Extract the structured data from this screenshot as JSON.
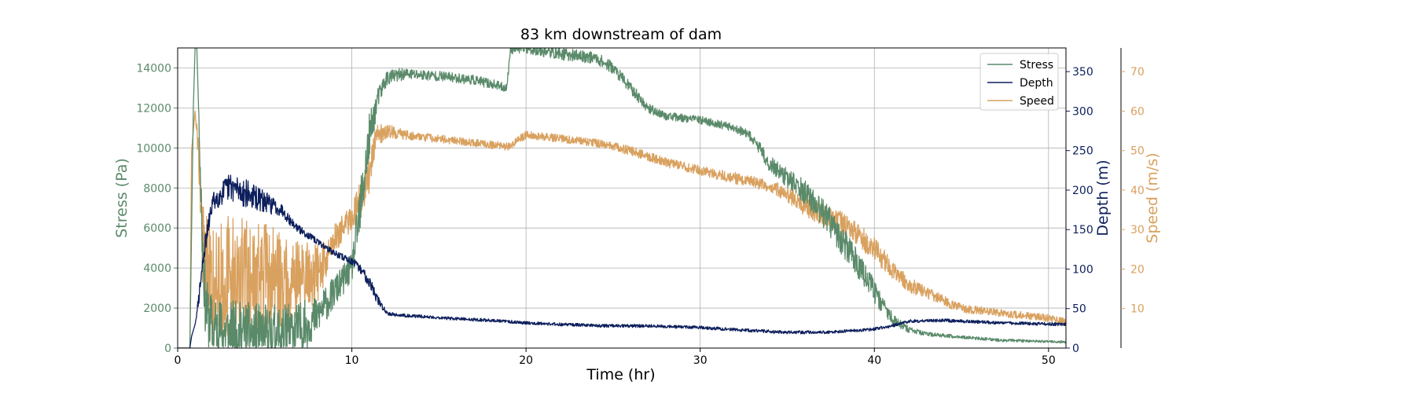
{
  "chart_data": {
    "type": "line",
    "title": "83 km downstream of dam",
    "xlabel": "Time (hr)",
    "xlim": [
      0,
      51
    ],
    "xticks": [
      0,
      10,
      20,
      30,
      40,
      50
    ],
    "grid": true,
    "legend_placement": "top-right",
    "axes": {
      "stress": {
        "label": "Stress (Pa)",
        "ylim": [
          0,
          15000
        ],
        "ticks": [
          0,
          2000,
          4000,
          6000,
          8000,
          10000,
          12000,
          14000
        ],
        "color": "#5a8a6a",
        "side": "left"
      },
      "depth": {
        "label": "Depth (m)",
        "ylim": [
          0,
          380
        ],
        "ticks": [
          0,
          50,
          100,
          150,
          200,
          250,
          300,
          350
        ],
        "color": "#0d1f5c",
        "side": "right"
      },
      "speed": {
        "label": "Speed (m/s)",
        "ylim": [
          0,
          76
        ],
        "ticks": [
          10,
          20,
          30,
          40,
          50,
          60,
          70
        ],
        "color": "#d9a15f",
        "side": "right-outer"
      }
    },
    "series": [
      {
        "name": "Stress",
        "axis": "stress",
        "color": "#5a8a6a",
        "x": [
          0,
          0.7,
          0.9,
          1.0,
          1.1,
          1.2,
          1.4,
          1.6,
          2,
          3,
          4,
          5,
          6,
          7,
          8,
          9,
          10,
          10.5,
          11,
          11.5,
          12,
          13,
          15,
          17,
          18,
          18.9,
          19.1,
          20,
          22,
          24,
          25,
          26,
          27,
          28,
          30,
          32,
          33,
          34,
          35,
          36,
          37,
          38,
          39,
          40,
          41,
          42,
          43,
          45,
          47,
          49,
          51
        ],
        "y": [
          0,
          0,
          12000,
          15000,
          15000,
          12000,
          6000,
          2000,
          1000,
          800,
          700,
          600,
          700,
          900,
          1600,
          2800,
          4000,
          7000,
          10500,
          12500,
          13500,
          13700,
          13600,
          13400,
          13200,
          13000,
          15000,
          15000,
          14700,
          14500,
          14000,
          13000,
          12000,
          11600,
          11400,
          11000,
          10500,
          9200,
          8500,
          7800,
          6800,
          5600,
          4300,
          2800,
          1500,
          900,
          700,
          550,
          400,
          350,
          300
        ],
        "noise": [
          0,
          0,
          0,
          0,
          0,
          0,
          2000,
          1600,
          1600,
          1600,
          1600,
          1600,
          1600,
          1400,
          1000,
          800,
          700,
          1500,
          1200,
          500,
          400,
          300,
          250,
          250,
          250,
          200,
          300,
          300,
          300,
          300,
          300,
          300,
          250,
          200,
          200,
          200,
          300,
          400,
          500,
          600,
          700,
          800,
          700,
          600,
          300,
          150,
          100,
          80,
          80,
          60,
          60
        ]
      },
      {
        "name": "Depth",
        "axis": "depth",
        "color": "#0d1f5c",
        "x": [
          0,
          0.7,
          0.8,
          1.0,
          1.2,
          1.5,
          2,
          3,
          4,
          5,
          6,
          6.5,
          7,
          8,
          9,
          10,
          10.5,
          11,
          11.5,
          12,
          12.5,
          14,
          16,
          18,
          20,
          22,
          25,
          27,
          30,
          33,
          35,
          37,
          39,
          40,
          41,
          42,
          44,
          47,
          51
        ],
        "y": [
          0,
          0,
          15,
          30,
          60,
          120,
          185,
          205,
          195,
          185,
          175,
          160,
          150,
          135,
          120,
          110,
          100,
          85,
          60,
          45,
          42,
          40,
          37,
          35,
          32,
          30,
          28,
          28,
          26,
          22,
          20,
          20,
          22,
          24,
          28,
          34,
          35,
          32,
          30
        ],
        "noise": [
          0,
          0,
          0,
          0,
          8,
          12,
          12,
          18,
          18,
          14,
          8,
          6,
          5,
          4,
          4,
          5,
          6,
          8,
          6,
          3,
          2,
          2,
          2,
          2,
          2,
          2,
          2,
          2,
          2,
          2,
          2,
          2,
          2,
          2,
          2,
          2,
          2,
          2,
          2
        ]
      },
      {
        "name": "Speed",
        "axis": "speed",
        "color": "#d9a15f",
        "x": [
          0,
          0.7,
          0.8,
          0.9,
          1.0,
          1.2,
          1.4,
          1.6,
          2,
          3,
          4,
          5,
          6,
          7,
          8,
          8.5,
          9,
          10,
          10.5,
          11,
          11.5,
          12,
          13,
          15,
          17,
          19,
          20,
          22,
          24,
          26,
          28,
          30,
          32,
          34,
          35,
          36,
          37,
          38,
          39,
          40,
          41,
          42,
          43,
          44,
          45,
          47,
          49,
          51
        ],
        "y": [
          0,
          0,
          50,
          55,
          60,
          50,
          28,
          18,
          17,
          18,
          18,
          18,
          17,
          18,
          19,
          22,
          28,
          33,
          38,
          45,
          54,
          55,
          54,
          53,
          52,
          51,
          54,
          53,
          52,
          50,
          47,
          45,
          43,
          41,
          39,
          36,
          34,
          32,
          29,
          25,
          20,
          16,
          14,
          12,
          10,
          9,
          8,
          7
        ],
        "noise": [
          0,
          0,
          0,
          0,
          0,
          4,
          12,
          16,
          16,
          16,
          15,
          14,
          12,
          10,
          8,
          5,
          4,
          3,
          5,
          6,
          3,
          2,
          1.2,
          1,
          1,
          1,
          1,
          1,
          1,
          1.2,
          1.2,
          1.2,
          1.5,
          1.5,
          2,
          2.5,
          3,
          3,
          3,
          3,
          2.5,
          2,
          1.5,
          1.5,
          1.2,
          1,
          1,
          1
        ]
      }
    ]
  }
}
